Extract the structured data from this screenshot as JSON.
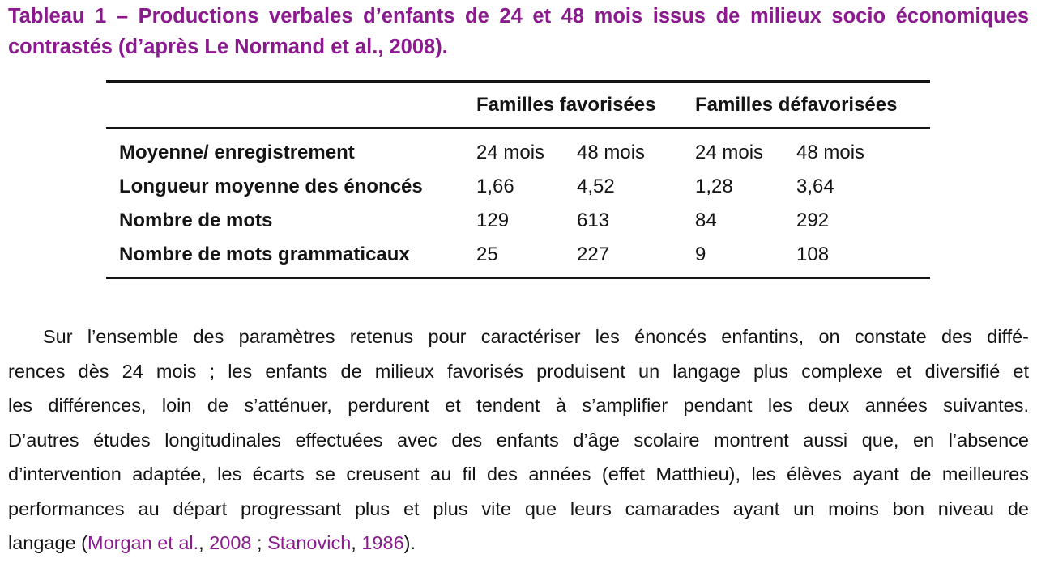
{
  "colors": {
    "accent_purple": "#8b1a8f",
    "text": "#141414",
    "background": "#ffffff"
  },
  "caption": {
    "line1": "Tableau 1 – Productions verbales d’enfants de 24 et 48 mois issus de milieux socio économiques",
    "line2": "contrastés (d’après Le Normand et al., 2008)."
  },
  "table": {
    "group_headers": [
      "Familles favorisées",
      "Familles défavorisées"
    ],
    "rows": [
      {
        "label": "Moyenne/ enregistrement",
        "values": [
          "24 mois",
          "48 mois",
          "24 mois",
          "48 mois"
        ]
      },
      {
        "label": "Longueur moyenne des énoncés",
        "values": [
          "1,66",
          "4,52",
          "1,28",
          "3,64"
        ]
      },
      {
        "label": "Nombre de mots",
        "values": [
          "129",
          "613",
          "84",
          "292"
        ]
      },
      {
        "label": "Nombre de mots grammaticaux",
        "values": [
          "25",
          "227",
          "9",
          "108"
        ]
      }
    ]
  },
  "chart_data": {
    "type": "table",
    "title": "Tableau 1 – Productions verbales d’enfants de 24 et 48 mois issus de milieux socio économiques contrastés (d’après Le Normand et al., 2008).",
    "columns": [
      "Moyenne/ enregistrement",
      "Familles favorisées 24 mois",
      "Familles favorisées 48 mois",
      "Familles défavorisées 24 mois",
      "Familles défavorisées 48 mois"
    ],
    "rows": [
      [
        "Longueur moyenne des énoncés",
        1.66,
        4.52,
        1.28,
        3.64
      ],
      [
        "Nombre de mots",
        129,
        613,
        84,
        292
      ],
      [
        "Nombre de mots grammaticaux",
        25,
        227,
        9,
        108
      ]
    ]
  },
  "paragraph": {
    "lines": [
      "Sur l’ensemble des paramètres retenus pour caractériser les énoncés enfantins, on constate des diffé-",
      "rences dès 24 mois ; les enfants de milieux favorisés produisent un langage plus complexe et diversifié et",
      "les différences, loin de s’atténuer, perdurent et tendent à s’amplifier pendant les deux années suivantes.",
      "D’autres études longitudinales effectuées avec des enfants d’âge scolaire montrent aussi que, en l’absence",
      "d’intervention adaptée, les écarts se creusent au fil des années (effet Matthieu), les élèves ayant de meilleures",
      "performances au départ progressant plus et plus vite que leurs camarades ayant un moins bon niveau de"
    ],
    "final_line": {
      "prefix": "langage (",
      "cite1": "Morgan et al.",
      "sep1": ", ",
      "year1": "2008",
      "sep2": " ; ",
      "cite2": "Stanovich",
      "sep3": ", ",
      "year2": "1986",
      "suffix": ")."
    }
  }
}
